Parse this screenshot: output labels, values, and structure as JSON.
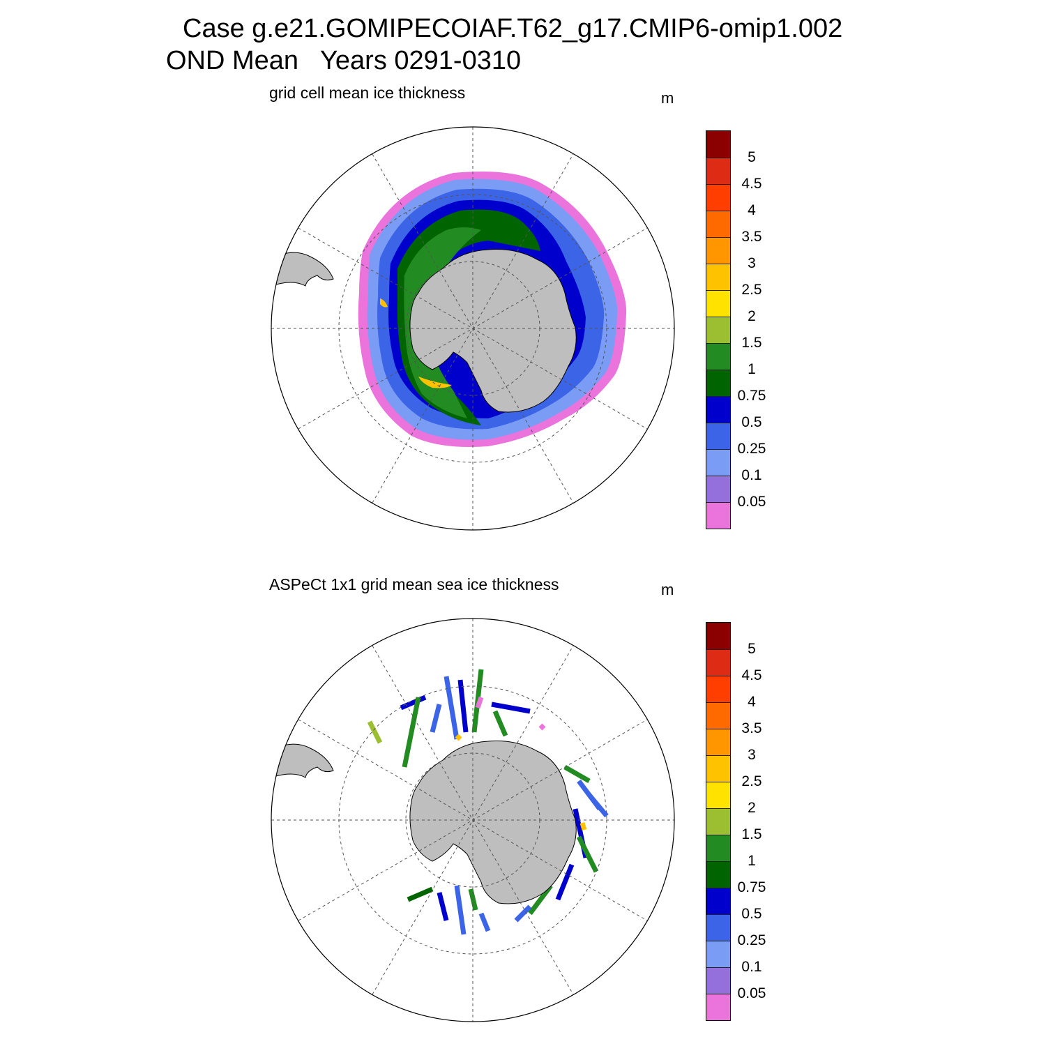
{
  "header": {
    "title_line1": "Case g.e21.GOMIPECOIAF.T62_g17.CMIP6-omip1.002",
    "title_line2": "OND Mean   Years 0291-0310"
  },
  "panels": [
    {
      "label": "grid cell mean ice thickness",
      "units": "m"
    },
    {
      "label": "ASPeCt 1x1 grid mean sea ice thickness",
      "units": "m"
    }
  ],
  "colorbar": {
    "labels": [
      "5",
      "4.5",
      "4",
      "3.5",
      "3",
      "2.5",
      "2",
      "1.5",
      "1",
      "0.75",
      "0.5",
      "0.25",
      "0.1",
      "0.05"
    ],
    "colors": [
      "#8b0000",
      "#de2c14",
      "#ff3e00",
      "#ff6a00",
      "#ff9600",
      "#ffc200",
      "#ffe200",
      "#9cbf32",
      "#228b22",
      "#006400",
      "#0000cd",
      "#3c64e6",
      "#7a9cf4",
      "#9370db",
      "#ea74dc"
    ]
  },
  "map_style": {
    "land": "#bebebe",
    "gridline": "#555555",
    "ocean_background": "#ffffff"
  }
}
